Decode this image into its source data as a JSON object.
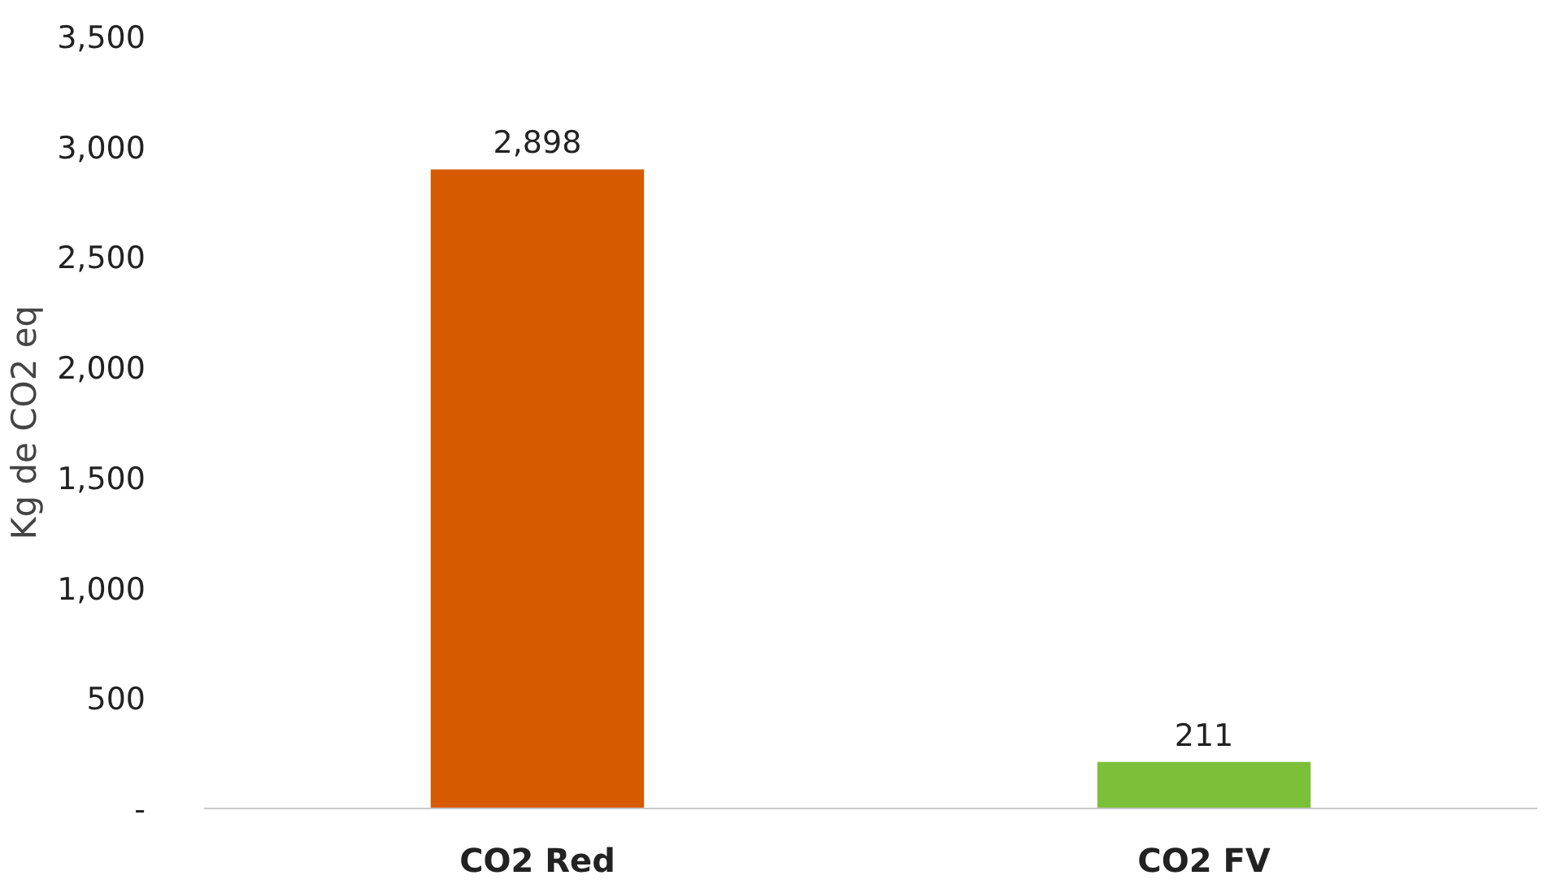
{
  "chart_data": {
    "type": "bar",
    "ylabel": "Kg de CO2 eq",
    "categories": [
      "CO2 Red",
      "CO2 FV"
    ],
    "values": [
      2898,
      211
    ],
    "colors": [
      "#d65a00",
      "#7cc03a"
    ],
    "ylim": [
      0,
      3500
    ],
    "yticks": [
      {
        "value": 0,
        "label": "-"
      },
      {
        "value": 500,
        "label": "500"
      },
      {
        "value": 1000,
        "label": "1,000"
      },
      {
        "value": 1500,
        "label": "1,500"
      },
      {
        "value": 2000,
        "label": "2,000"
      },
      {
        "value": 2500,
        "label": "2,500"
      },
      {
        "value": 3000,
        "label": "3,000"
      },
      {
        "value": 3500,
        "label": "3,500"
      }
    ],
    "value_labels": [
      "2,898",
      "211"
    ],
    "grid": false
  }
}
